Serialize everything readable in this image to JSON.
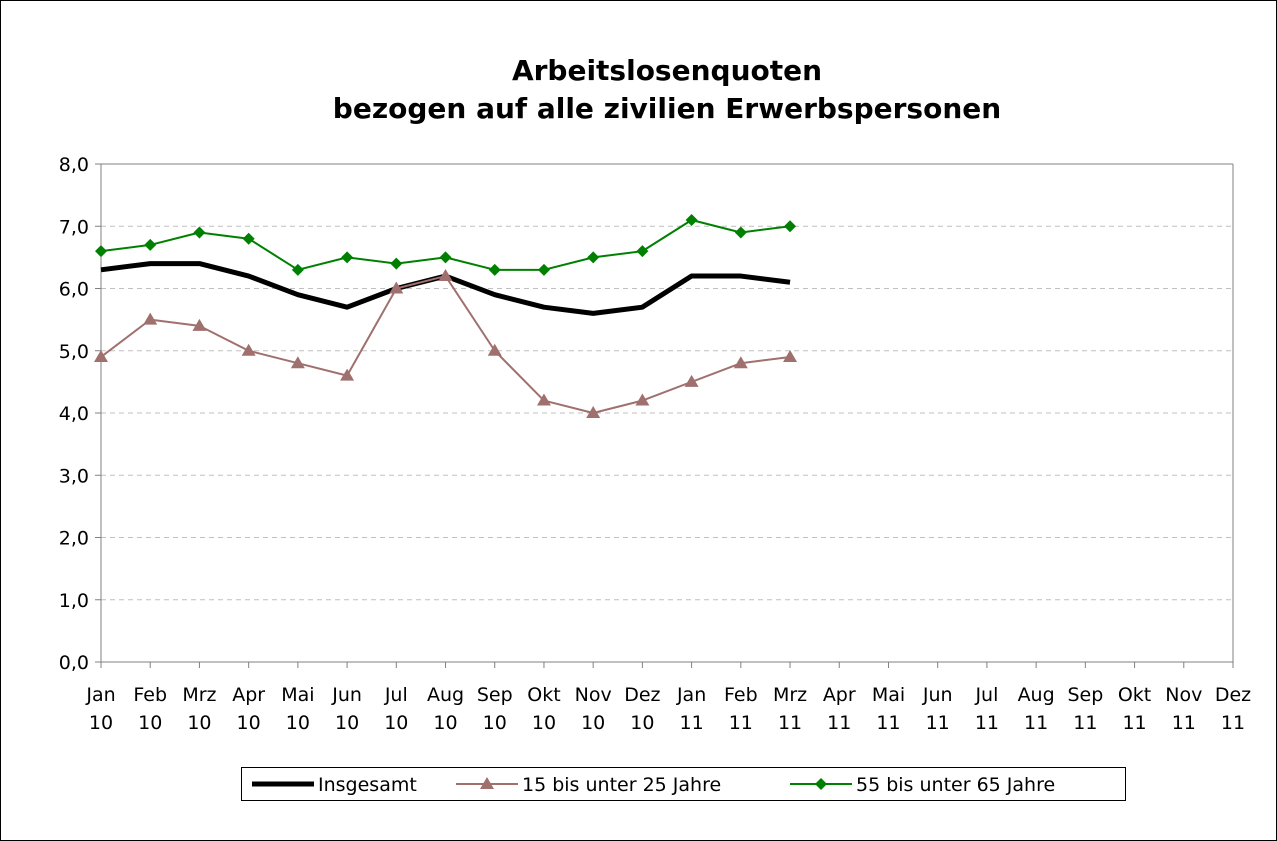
{
  "chart_data": {
    "type": "line",
    "title": "Arbeitslosenquoten",
    "subtitle": "bezogen auf alle zivilien Erwerbspersonen",
    "categories": [
      "Jan 10",
      "Feb 10",
      "Mrz 10",
      "Apr 10",
      "Mai 10",
      "Jun 10",
      "Jul 10",
      "Aug 10",
      "Sep 10",
      "Okt 10",
      "Nov 10",
      "Dez 10",
      "Jan 11",
      "Feb 11",
      "Mrz 11",
      "Apr 11",
      "Mai 11",
      "Jun 11",
      "Jul 11",
      "Aug 11",
      "Sep 11",
      "Okt 11",
      "Nov 11",
      "Dez 11"
    ],
    "series": [
      {
        "name": "Insgesamt",
        "color": "#000000",
        "marker": "none",
        "values": [
          6.3,
          6.4,
          6.4,
          6.2,
          5.9,
          5.7,
          6.0,
          6.2,
          5.9,
          5.7,
          5.6,
          5.7,
          6.2,
          6.2,
          6.1,
          null,
          null,
          null,
          null,
          null,
          null,
          null,
          null,
          null
        ]
      },
      {
        "name": "15 bis unter 25 Jahre",
        "color": "#a0706e",
        "marker": "triangle",
        "values": [
          4.9,
          5.5,
          5.4,
          5.0,
          4.8,
          4.6,
          6.0,
          6.2,
          5.0,
          4.2,
          4.0,
          4.2,
          4.5,
          4.8,
          4.9,
          null,
          null,
          null,
          null,
          null,
          null,
          null,
          null,
          null
        ]
      },
      {
        "name": "55 bis unter 65 Jahre",
        "color": "#008000",
        "marker": "diamond",
        "values": [
          6.6,
          6.7,
          6.9,
          6.8,
          6.3,
          6.5,
          6.4,
          6.5,
          6.3,
          6.3,
          6.5,
          6.6,
          7.1,
          6.9,
          7.0,
          null,
          null,
          null,
          null,
          null,
          null,
          null,
          null,
          null
        ]
      }
    ],
    "ylim": [
      0,
      8
    ],
    "yticks": [
      {
        "value": 0,
        "label": "0,0"
      },
      {
        "value": 1,
        "label": "1,0"
      },
      {
        "value": 2,
        "label": "2,0"
      },
      {
        "value": 3,
        "label": "3,0"
      },
      {
        "value": 4,
        "label": "4,0"
      },
      {
        "value": 5,
        "label": "5,0"
      },
      {
        "value": 6,
        "label": "6,0"
      },
      {
        "value": 7,
        "label": "7,0"
      },
      {
        "value": 8,
        "label": "8,0"
      }
    ],
    "grid": true,
    "legend": "bottom"
  }
}
